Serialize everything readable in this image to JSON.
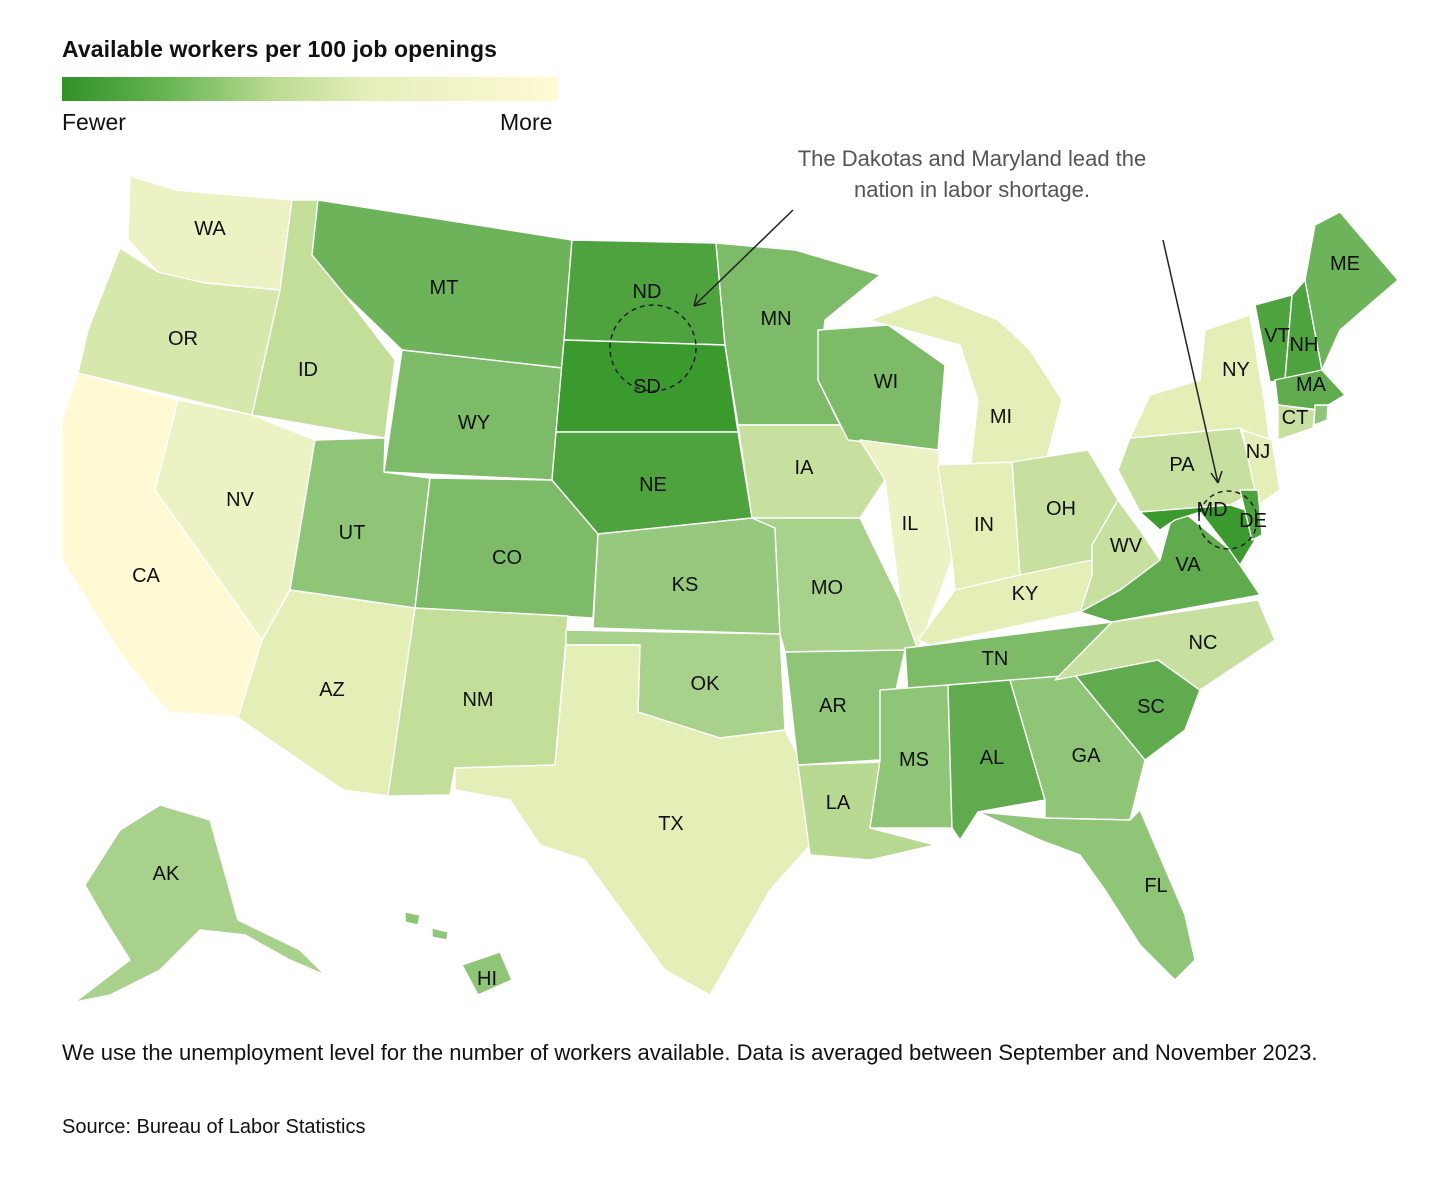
{
  "title": "Available workers per 100 job openings",
  "legend": {
    "low_label": "Fewer",
    "high_label": "More",
    "colors": [
      "#2f9126",
      "#58a848",
      "#9ccc80",
      "#d8e9b0",
      "#f0f4c8",
      "#fffad4"
    ]
  },
  "annotation": {
    "line1": "The Dakotas and Maryland lead the",
    "line2": "nation in labor shortage."
  },
  "note": "We use the unemployment level for the number of workers available. Data is averaged between September and November 2023.",
  "source": "Source: Bureau of Labor Statistics",
  "chart_data": {
    "type": "choropleth",
    "scale": "sequential green: fewer available workers per 100 openings = darker green",
    "states": [
      {
        "abbr": "WA",
        "color": "#edf2c4"
      },
      {
        "abbr": "OR",
        "color": "#d6e8ac"
      },
      {
        "abbr": "CA",
        "color": "#fffad4"
      },
      {
        "abbr": "NV",
        "color": "#edf2c4"
      },
      {
        "abbr": "ID",
        "color": "#c2de98"
      },
      {
        "abbr": "MT",
        "color": "#6db35a"
      },
      {
        "abbr": "WY",
        "color": "#7dbb68"
      },
      {
        "abbr": "UT",
        "color": "#8fc577"
      },
      {
        "abbr": "CO",
        "color": "#7dbb68"
      },
      {
        "abbr": "AZ",
        "color": "#e4efb8"
      },
      {
        "abbr": "NM",
        "color": "#c2de98"
      },
      {
        "abbr": "ND",
        "color": "#4ea33f"
      },
      {
        "abbr": "SD",
        "color": "#3a9a2e"
      },
      {
        "abbr": "NE",
        "color": "#4ea33f"
      },
      {
        "abbr": "KS",
        "color": "#96c97e"
      },
      {
        "abbr": "OK",
        "color": "#a8d28b"
      },
      {
        "abbr": "TX",
        "color": "#e4efb8"
      },
      {
        "abbr": "MN",
        "color": "#7dbb68"
      },
      {
        "abbr": "IA",
        "color": "#c8e09f"
      },
      {
        "abbr": "MO",
        "color": "#a8d28b"
      },
      {
        "abbr": "AR",
        "color": "#8fc577"
      },
      {
        "abbr": "LA",
        "color": "#b8d992"
      },
      {
        "abbr": "WI",
        "color": "#7dbb68"
      },
      {
        "abbr": "IL",
        "color": "#ecf2c3"
      },
      {
        "abbr": "MI",
        "color": "#e4efb8"
      },
      {
        "abbr": "IN",
        "color": "#e4efb8"
      },
      {
        "abbr": "OH",
        "color": "#c8e09f"
      },
      {
        "abbr": "KY",
        "color": "#e4efb8"
      },
      {
        "abbr": "TN",
        "color": "#7dbb68"
      },
      {
        "abbr": "MS",
        "color": "#8fc577"
      },
      {
        "abbr": "AL",
        "color": "#5fab4d"
      },
      {
        "abbr": "GA",
        "color": "#8fc577"
      },
      {
        "abbr": "FL",
        "color": "#8fc577"
      },
      {
        "abbr": "SC",
        "color": "#5fab4d"
      },
      {
        "abbr": "NC",
        "color": "#c8e09f"
      },
      {
        "abbr": "VA",
        "color": "#5fab4d"
      },
      {
        "abbr": "WV",
        "color": "#c8e09f"
      },
      {
        "abbr": "PA",
        "color": "#c8e09f"
      },
      {
        "abbr": "NY",
        "color": "#e4efb8"
      },
      {
        "abbr": "NJ",
        "color": "#e4efb8"
      },
      {
        "abbr": "MD",
        "color": "#3a9a2e"
      },
      {
        "abbr": "DE",
        "color": "#4ea33f"
      },
      {
        "abbr": "VT",
        "color": "#4ea33f"
      },
      {
        "abbr": "NH",
        "color": "#4ea33f"
      },
      {
        "abbr": "MA",
        "color": "#5fab4d"
      },
      {
        "abbr": "ME",
        "color": "#6db35a"
      },
      {
        "abbr": "CT",
        "color": "#c8e09f"
      },
      {
        "abbr": "RI",
        "color": "#8fc577"
      },
      {
        "abbr": "AK",
        "color": "#a8d28b"
      },
      {
        "abbr": "HI",
        "color": "#8fc577"
      }
    ],
    "highlighted": [
      "ND",
      "SD",
      "MD"
    ]
  }
}
